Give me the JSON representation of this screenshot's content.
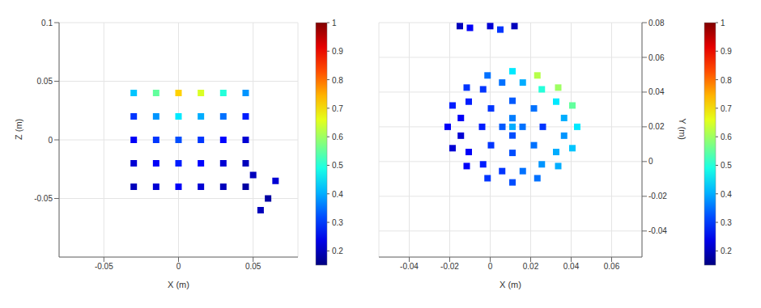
{
  "chart_data": [
    {
      "type": "scatter",
      "xlabel": "X (m)",
      "ylabel": "Z (m)",
      "xlim": [
        -0.08,
        0.08
      ],
      "xticks": [
        -0.05,
        0,
        0.05
      ],
      "ylim": [
        -0.1,
        0.1
      ],
      "yticks": [
        -0.05,
        0,
        0.05,
        0.1
      ],
      "grid": true,
      "x": [
        -0.03,
        -0.015,
        0,
        0.015,
        0.03,
        0.045,
        -0.03,
        -0.015,
        0,
        0.015,
        0.03,
        0.045,
        -0.03,
        -0.015,
        0,
        0.015,
        0.03,
        0.045,
        -0.03,
        -0.015,
        0,
        0.015,
        0.03,
        0.045,
        -0.03,
        -0.015,
        0,
        0.015,
        0.03,
        0.045,
        0.05,
        0.06,
        0.055,
        0.065
      ],
      "y": [
        -0.04,
        -0.04,
        -0.04,
        -0.04,
        -0.04,
        -0.04,
        -0.02,
        -0.02,
        -0.02,
        -0.02,
        -0.02,
        -0.02,
        0,
        0,
        0,
        0,
        0,
        0,
        0.02,
        0.02,
        0.02,
        0.02,
        0.02,
        0.02,
        0.04,
        0.04,
        0.04,
        0.04,
        0.04,
        0.04,
        -0.03,
        -0.05,
        -0.06,
        -0.035
      ],
      "intensity": [
        0.2,
        0.22,
        0.25,
        0.22,
        0.2,
        0.18,
        0.22,
        0.25,
        0.28,
        0.26,
        0.22,
        0.2,
        0.25,
        0.3,
        0.32,
        0.3,
        0.26,
        0.22,
        0.3,
        0.38,
        0.45,
        0.4,
        0.35,
        0.28,
        0.42,
        0.55,
        0.72,
        0.65,
        0.5,
        0.38,
        0.2,
        0.18,
        0.2,
        0.22
      ],
      "colorbar": {
        "range": [
          0.15,
          1
        ],
        "ticks": [
          0.2,
          0.3,
          0.4,
          0.5,
          0.6,
          0.7,
          0.8,
          0.9,
          1
        ]
      }
    },
    {
      "type": "scatter",
      "xlabel": "X (m)",
      "ylabel": "Y (m)",
      "xlim": [
        -0.055,
        0.075
      ],
      "xticks": [
        -0.04,
        -0.02,
        0,
        0.02,
        0.04,
        0.06
      ],
      "ylim": [
        -0.055,
        0.08
      ],
      "yticks": [
        -0.04,
        -0.02,
        0,
        0.02,
        0.04,
        0.06,
        0.08
      ],
      "grid": true,
      "x": [
        0.043,
        0.0406,
        0.0336,
        0.0233,
        0.011,
        -0.0013,
        -0.0116,
        -0.0186,
        -0.021,
        -0.0186,
        -0.0116,
        -0.0013,
        0.011,
        0.0233,
        0.0336,
        0.0406,
        0.0365,
        0.0326,
        0.0255,
        0.0161,
        0.0059,
        -0.0035,
        -0.0106,
        -0.0145,
        -0.0145,
        -0.0106,
        -0.0035,
        0.0059,
        0.0161,
        0.0255,
        0.0326,
        0.0365,
        0.011,
        0.016,
        0.006,
        0.011,
        0.011,
        0.026,
        0.0216,
        0.011,
        0.0004,
        -0.004,
        0.0004,
        0.011,
        0.0216,
        -0.015,
        -0.01,
        0,
        0.005,
        0.012
      ],
      "y": [
        0.02,
        0.0323,
        0.0426,
        0.0496,
        0.052,
        0.0496,
        0.0426,
        0.0323,
        0.02,
        0.0077,
        -0.0026,
        -0.0096,
        -0.012,
        -0.0096,
        -0.0026,
        0.0077,
        0.0251,
        0.0345,
        0.0416,
        0.0455,
        0.0455,
        0.0416,
        0.0345,
        0.0251,
        0.0149,
        0.0055,
        -0.0016,
        -0.0055,
        -0.0055,
        -0.0016,
        0.0055,
        0.0149,
        0.02,
        0.02,
        0.02,
        0.025,
        0.015,
        0.02,
        0.0306,
        0.035,
        0.0306,
        0.02,
        0.0094,
        0.005,
        0.0094,
        0.078,
        0.077,
        0.078,
        0.076,
        0.078
      ],
      "intensity": [
        0.45,
        0.55,
        0.6,
        0.62,
        0.45,
        0.35,
        0.3,
        0.28,
        0.25,
        0.22,
        0.25,
        0.3,
        0.32,
        0.35,
        0.4,
        0.42,
        0.4,
        0.45,
        0.5,
        0.4,
        0.35,
        0.3,
        0.28,
        0.25,
        0.22,
        0.25,
        0.28,
        0.3,
        0.35,
        0.38,
        0.4,
        0.38,
        0.4,
        0.35,
        0.33,
        0.36,
        0.32,
        0.3,
        0.35,
        0.33,
        0.3,
        0.28,
        0.3,
        0.32,
        0.35,
        0.2,
        0.25,
        0.22,
        0.3,
        0.2
      ],
      "colorbar": {
        "range": [
          0.15,
          1
        ],
        "ticks": [
          0.2,
          0.3,
          0.4,
          0.5,
          0.6,
          0.7,
          0.8,
          0.9,
          1
        ]
      }
    }
  ]
}
